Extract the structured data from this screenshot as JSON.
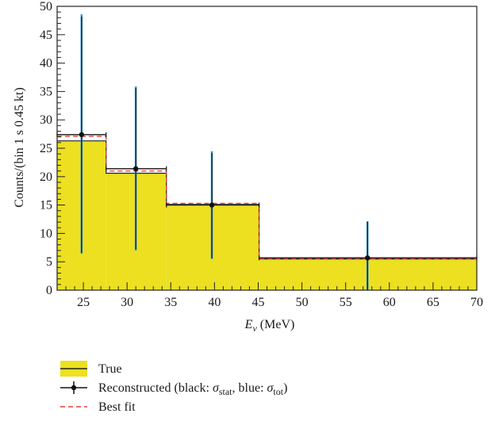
{
  "chart_data": {
    "type": "histogram",
    "xlabel": "E",
    "xlabel_sub": "ν",
    "xlabel_unit": " (MeV)",
    "ylabel": "Counts/(bin 1 s 0.45 kt)",
    "xlim": [
      22,
      70
    ],
    "ylim": [
      0,
      50
    ],
    "xticks": [
      25,
      30,
      35,
      40,
      45,
      50,
      55,
      60,
      65,
      70
    ],
    "yticks": [
      0,
      5,
      10,
      15,
      20,
      25,
      30,
      35,
      40,
      45,
      50
    ],
    "bins": [
      {
        "x0": 22,
        "x1": 27.6,
        "true": 26.3,
        "best_fit": 27.1
      },
      {
        "x0": 27.6,
        "x1": 34.5,
        "true": 20.6,
        "best_fit": 21.0
      },
      {
        "x0": 34.5,
        "x1": 45.1,
        "true": 15.1,
        "best_fit": 15.3
      },
      {
        "x0": 45.1,
        "x1": 70,
        "true": 5.5,
        "best_fit": 5.5
      }
    ],
    "reconstructed": [
      {
        "x": 24.8,
        "y": 27.4,
        "xerr": [
          22,
          27.6
        ],
        "stat": [
          6.6,
          48.2
        ],
        "tot": [
          6.4,
          48.6
        ]
      },
      {
        "x": 31.0,
        "y": 21.4,
        "xerr": [
          27.6,
          34.5
        ],
        "stat": [
          7.2,
          35.6
        ],
        "tot": [
          7.0,
          35.9
        ]
      },
      {
        "x": 39.7,
        "y": 15.0,
        "xerr": [
          34.5,
          45.1
        ],
        "stat": [
          5.6,
          24.2
        ],
        "tot": [
          5.5,
          24.5
        ]
      },
      {
        "x": 57.5,
        "y": 5.7,
        "xerr": [
          45.1,
          70
        ],
        "stat": [
          0,
          12.1
        ],
        "tot": [
          0,
          12.1
        ]
      }
    ],
    "legend_placement": "bottom-left",
    "legend": [
      {
        "key": "true",
        "label": "True"
      },
      {
        "key": "reco",
        "label_pre": "Reconstructed (black: ",
        "label_mid": ", blue: ",
        "label_post": ")",
        "sym": "σ",
        "sub1": "stat",
        "sub2": "tot"
      },
      {
        "key": "best",
        "label": "Best fit"
      }
    ],
    "colors": {
      "true_fill": "#ece020",
      "true_line": "#222222",
      "best_fit": "#e8403a",
      "reco": "#111111",
      "tot_err": "#3aa0e0",
      "frame": "#222222"
    }
  }
}
